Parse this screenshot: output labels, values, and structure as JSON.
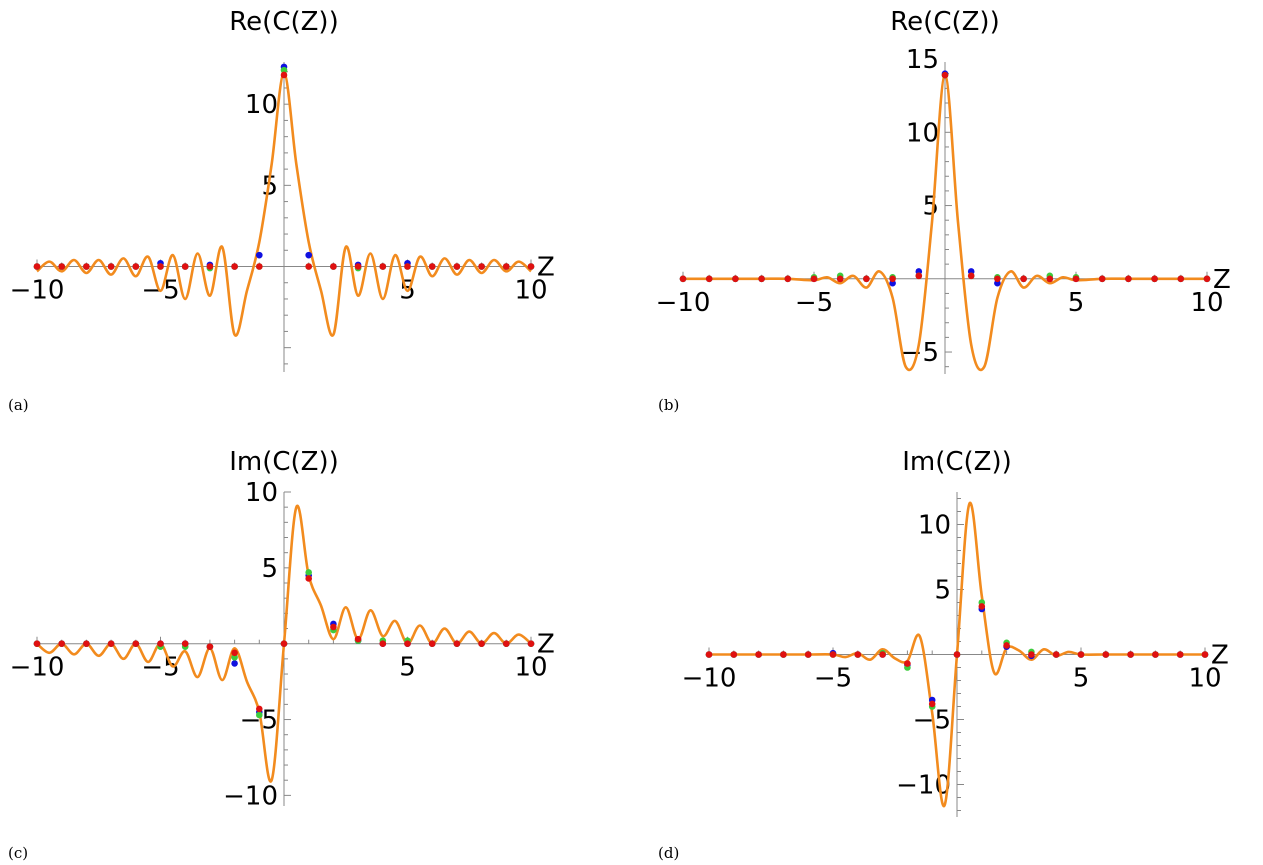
{
  "figure": {
    "captions": [
      "(a)",
      "(b)",
      "(c)",
      "(d)"
    ]
  },
  "colors": {
    "curve": "#f28b1e",
    "axis": "#888888",
    "dot_blue": "#1010e0",
    "dot_green": "#3ccc3c",
    "dot_red": "#e01010"
  },
  "chart_data": [
    {
      "id": "a",
      "type": "line",
      "title": "Re(C(Z))",
      "xlabel": "Z",
      "xlim": [
        -10,
        10
      ],
      "ylim": [
        -6.5,
        12.6
      ],
      "xticks": [
        -10,
        -5,
        5,
        10
      ],
      "yticks": [
        5,
        10
      ],
      "curve": {
        "x": [
          -10,
          -9.5,
          -9,
          -8.5,
          -8,
          -7.5,
          -7,
          -6.5,
          -6,
          -5.5,
          -5,
          -4.5,
          -4,
          -3.5,
          -3,
          -2.5,
          -2,
          -1.5,
          -1,
          -0.5,
          0,
          0.5,
          1,
          1.5,
          2,
          2.5,
          3,
          3.5,
          4,
          4.5,
          5,
          5.5,
          6,
          6.5,
          7,
          7.5,
          8,
          8.5,
          9,
          9.5,
          10
        ],
        "y": [
          -0.3,
          0.3,
          -0.3,
          0.4,
          -0.4,
          0.4,
          -0.5,
          0.5,
          -0.6,
          0.6,
          -1.5,
          0.7,
          -2,
          0.8,
          -1.8,
          1.2,
          -4.2,
          -1.5,
          1.5,
          6.3,
          11.9,
          6.3,
          1.5,
          -1.5,
          -4.2,
          1.2,
          -1.8,
          0.8,
          -2,
          0.7,
          -1.5,
          0.6,
          -0.6,
          0.5,
          -0.5,
          0.4,
          -0.4,
          0.4,
          -0.3,
          0.3,
          -0.3
        ]
      },
      "points": {
        "x": [
          -10,
          -9,
          -8,
          -7,
          -6,
          -5,
          -4,
          -3,
          -2,
          -1,
          0,
          1,
          2,
          3,
          4,
          5,
          6,
          7,
          8,
          9,
          10
        ],
        "blue": [
          0,
          0,
          0,
          0,
          0,
          0.2,
          0,
          0.1,
          0,
          0.7,
          12.3,
          0.7,
          0,
          0.1,
          0,
          0.2,
          0,
          0,
          0,
          0,
          0
        ],
        "green": [
          0,
          0,
          0,
          0,
          0,
          0,
          0,
          -0.1,
          0,
          0,
          12.1,
          0,
          0,
          -0.1,
          0,
          0,
          0,
          0,
          0,
          0,
          0
        ],
        "red": [
          0,
          0,
          0,
          0,
          0,
          0,
          0,
          0,
          0,
          0,
          11.8,
          0,
          0,
          0,
          0,
          0,
          0,
          0,
          0,
          0,
          0
        ]
      }
    },
    {
      "id": "b",
      "type": "line",
      "title": "Re(C(Z))",
      "xlabel": "Z",
      "xlim": [
        -10,
        10
      ],
      "ylim": [
        -6.5,
        14.8
      ],
      "xticks": [
        -10,
        -5,
        5,
        10
      ],
      "yticks": [
        -5,
        5,
        10,
        15
      ],
      "curve": {
        "x": [
          -10,
          -9,
          -8,
          -7,
          -6,
          -5,
          -4.5,
          -4,
          -3.5,
          -3,
          -2.5,
          -2,
          -1.5,
          -1,
          -0.5,
          0,
          0.5,
          1,
          1.5,
          2,
          2.5,
          3,
          3.5,
          4,
          4.5,
          5,
          6,
          7,
          8,
          9,
          10
        ],
        "y": [
          0,
          0,
          0,
          0,
          0,
          -0.1,
          0.1,
          -0.3,
          0.2,
          -0.6,
          0.5,
          -1.3,
          -6,
          -4.5,
          3.8,
          13.9,
          3.8,
          -4.5,
          -6,
          -1.3,
          0.5,
          -0.6,
          0.2,
          -0.3,
          0.1,
          -0.1,
          0,
          0,
          0,
          0,
          0
        ]
      },
      "points": {
        "x": [
          -10,
          -9,
          -8,
          -7,
          -6,
          -5,
          -4,
          -3,
          -2,
          -1,
          0,
          1,
          2,
          3,
          4,
          5,
          6,
          7,
          8,
          9,
          10
        ],
        "blue": [
          0,
          0,
          0,
          0,
          0,
          0,
          0,
          0,
          -0.3,
          0.5,
          14,
          0.5,
          -0.3,
          0,
          0,
          0,
          0,
          0,
          0,
          0,
          0
        ],
        "green": [
          0,
          0,
          0,
          0,
          0,
          0.1,
          0.2,
          0,
          0.1,
          0.2,
          13.9,
          0.2,
          0.1,
          0,
          0.2,
          0.1,
          0,
          0,
          0,
          0,
          0
        ],
        "red": [
          0,
          0,
          0,
          0,
          0,
          0,
          0,
          0,
          0,
          0.2,
          13.9,
          0.2,
          0,
          0,
          0,
          0,
          0,
          0,
          0,
          0,
          0
        ]
      }
    },
    {
      "id": "c",
      "type": "line",
      "title": "Im(C(Z))",
      "xlabel": "Z",
      "xlim": [
        -10,
        10
      ],
      "ylim": [
        -10.7,
        10
      ],
      "xticks": [
        -10,
        -5,
        5,
        10
      ],
      "yticks": [
        -10,
        -5,
        5,
        10
      ],
      "curve": {
        "x": [
          -10,
          -9.5,
          -9,
          -8.5,
          -8,
          -7.5,
          -7,
          -6.5,
          -6,
          -5.5,
          -5,
          -4.5,
          -4,
          -3.5,
          -3,
          -2.5,
          -2,
          -1.5,
          -1,
          -0.5,
          0,
          0.5,
          1,
          1.5,
          2,
          2.5,
          3,
          3.5,
          4,
          4.5,
          5,
          5.5,
          6,
          6.5,
          7,
          7.5,
          8,
          8.5,
          9,
          9.5,
          10
        ],
        "y": [
          0,
          -0.6,
          0,
          -0.7,
          0,
          -0.8,
          0,
          -1,
          0,
          -1.2,
          0,
          -1.5,
          -0.5,
          -2.2,
          -0.3,
          -2.4,
          -0.3,
          -2.5,
          -4.5,
          -9,
          0,
          9,
          4.5,
          2.5,
          0.3,
          2.4,
          0.3,
          2.2,
          0.5,
          1.5,
          0,
          1.2,
          0,
          1,
          0,
          0.8,
          0,
          0.7,
          0,
          0.6,
          0
        ]
      },
      "points": {
        "x": [
          -10,
          -9,
          -8,
          -7,
          -6,
          -5,
          -4,
          -3,
          -2,
          -1,
          0,
          1,
          2,
          3,
          4,
          5,
          6,
          7,
          8,
          9,
          10
        ],
        "blue": [
          0,
          0,
          0,
          0,
          0,
          0,
          0,
          -0.2,
          -1.3,
          -4.5,
          0,
          4.5,
          1.3,
          0.2,
          0,
          0,
          0,
          0,
          0,
          0,
          0
        ],
        "green": [
          0,
          0,
          0,
          0,
          0,
          -0.2,
          -0.2,
          -0.2,
          -0.9,
          -4.7,
          0,
          4.7,
          0.9,
          0.2,
          0.2,
          0.2,
          0,
          0,
          0,
          0,
          0
        ],
        "red": [
          0,
          0,
          0,
          0,
          0,
          0,
          0,
          -0.2,
          -0.6,
          -4.3,
          0,
          4.3,
          1.1,
          0.3,
          0,
          0,
          0,
          0,
          0,
          0,
          0
        ]
      }
    },
    {
      "id": "d",
      "type": "line",
      "title": "Im(C(Z))",
      "xlabel": "Z",
      "xlim": [
        -10,
        10
      ],
      "ylim": [
        -12.5,
        12.5
      ],
      "xticks": [
        -10,
        -5,
        5,
        10
      ],
      "yticks": [
        -10,
        -5,
        5,
        10
      ],
      "curve": {
        "x": [
          -10,
          -9,
          -8,
          -7,
          -6,
          -5,
          -4.5,
          -4,
          -3.5,
          -3,
          -2.5,
          -2,
          -1.5,
          -1,
          -0.5,
          0,
          0.5,
          1,
          1.5,
          2,
          2.5,
          3,
          3.5,
          4,
          4.5,
          5,
          6,
          7,
          8,
          9,
          10
        ],
        "y": [
          0,
          0,
          0,
          0,
          0,
          0,
          -0.2,
          0.1,
          -0.4,
          0.4,
          -0.3,
          -0.5,
          1.4,
          -4.5,
          -11.6,
          0,
          11.6,
          4.5,
          -1.4,
          0.5,
          0.3,
          -0.4,
          0.4,
          -0.1,
          0.2,
          0,
          0,
          0,
          0,
          0,
          0
        ]
      },
      "points": {
        "x": [
          -10,
          -9,
          -8,
          -7,
          -6,
          -5,
          -4,
          -3,
          -2,
          -1,
          0,
          1,
          2,
          3,
          4,
          5,
          6,
          7,
          8,
          9,
          10
        ],
        "blue": [
          0,
          0,
          0,
          0,
          0,
          0.1,
          0,
          0,
          -0.8,
          -3.5,
          0,
          3.5,
          0.6,
          -0.1,
          0,
          0,
          0,
          0,
          0,
          0,
          0
        ],
        "green": [
          0,
          0,
          0,
          0,
          0,
          0,
          0,
          0.1,
          -1,
          -4,
          0,
          4,
          0.9,
          0.2,
          0,
          0,
          0,
          0,
          0,
          0,
          0
        ],
        "red": [
          0,
          0,
          0,
          0,
          0,
          0,
          0,
          0,
          -0.7,
          -3.8,
          0,
          3.7,
          0.7,
          0,
          0,
          0,
          0,
          0,
          0,
          0,
          0
        ]
      }
    }
  ]
}
